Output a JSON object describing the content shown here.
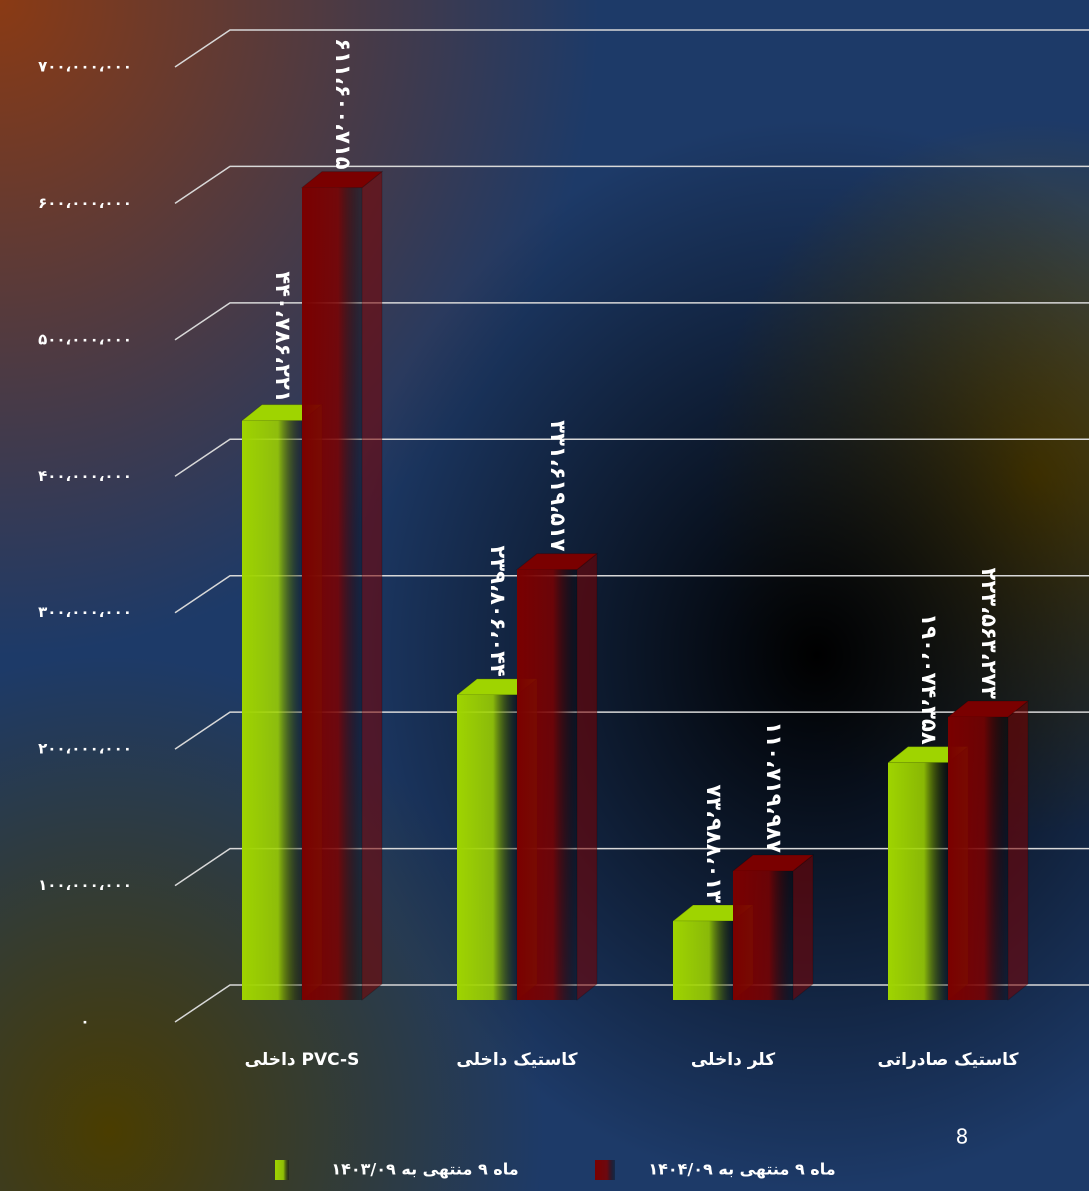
{
  "chart_data": {
    "type": "bar3d",
    "categories": [
      "داخلی PVC-S",
      "کاستیک داخلی",
      "کلر داخلی",
      "کاستیک صادراتی"
    ],
    "series": [
      {
        "name": "ماه ۹ منتهی به ۱۴۰۳/۰۹",
        "color": "#9fd400",
        "values": [
          440786221,
          239806044,
          73988013,
          190074358
        ],
        "value_labels": [
          "۴۴۰،۷۸۶،۲۲۱",
          "۲۳۹،۸۰۶،۰۴۴",
          "۷۳،۹۸۸،۰۱۳",
          "۱۹۰،۰۷۴،۳۵۸"
        ]
      },
      {
        "name": "ماه ۹ منتهی به ۱۴۰۴/۰۹",
        "color": "#7a0000",
        "values": [
          611600715,
          331619517,
          110719987,
          223563273
        ],
        "value_labels": [
          "۶۱۱،۶۰۰،۷۱۵",
          "۳۳۱،۶۱۹،۵۱۷",
          "۱۱۰،۷۱۹،۹۸۷",
          "۲۲۳،۵۶۳،۲۷۳"
        ]
      }
    ],
    "ylim": [
      0,
      700000000
    ],
    "yticks": [
      {
        "value": 0,
        "label": "۰"
      },
      {
        "value": 100000000,
        "label": "۱۰۰،۰۰۰،۰۰۰"
      },
      {
        "value": 200000000,
        "label": "۲۰۰،۰۰۰،۰۰۰"
      },
      {
        "value": 300000000,
        "label": "۳۰۰،۰۰۰،۰۰۰"
      },
      {
        "value": 400000000,
        "label": "۴۰۰،۰۰۰،۰۰۰"
      },
      {
        "value": 500000000,
        "label": "۵۰۰،۰۰۰،۰۰۰"
      },
      {
        "value": 600000000,
        "label": "۶۰۰،۰۰۰،۰۰۰"
      },
      {
        "value": 700000000,
        "label": "۷۰۰،۰۰۰،۰۰۰"
      }
    ],
    "grid": true,
    "legend": "bottom",
    "page_number": "8"
  }
}
